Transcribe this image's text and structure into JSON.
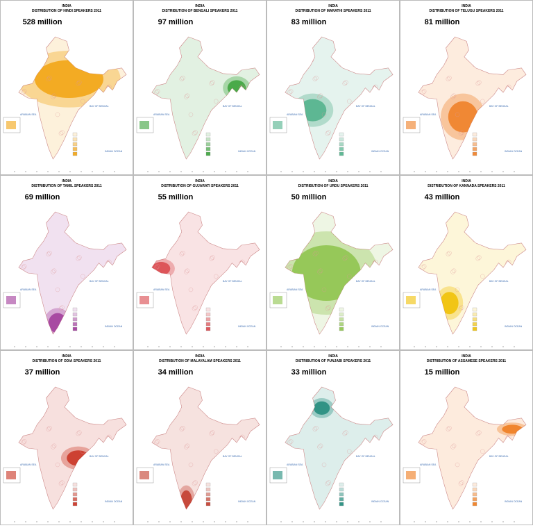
{
  "maps": [
    {
      "country": "INDIA",
      "title": "DISTRIBUTION OF HINDI SPEAKERS 2011",
      "speakers": "528 million",
      "color": "#f2a30f"
    },
    {
      "country": "INDIA",
      "title": "DISTRIBUTION OF BENGALI SPEAKERS 2011",
      "speakers": "97 million",
      "color": "#3aa23a"
    },
    {
      "country": "INDIA",
      "title": "DISTRIBUTION OF MARATHI SPEAKERS 2011",
      "speakers": "83 million",
      "color": "#4fb08a"
    },
    {
      "country": "INDIA",
      "title": "DISTRIBUTION OF TELUGU SPEAKERS 2011",
      "speakers": "81 million",
      "color": "#ef7d22"
    },
    {
      "country": "INDIA",
      "title": "DISTRIBUTION OF TAMIL SPEAKERS 2011",
      "speakers": "69 million",
      "color": "#a0399a"
    },
    {
      "country": "INDIA",
      "title": "DISTRIBUTION OF GUJARATI SPEAKERS 2011",
      "speakers": "55 million",
      "color": "#d9454a"
    },
    {
      "country": "INDIA",
      "title": "DISTRIBUTION OF URDU SPEAKERS 2011",
      "speakers": "50 million",
      "color": "#8cc34a"
    },
    {
      "country": "INDIA",
      "title": "DISTRIBUTION OF KANNADA SPEAKERS 2011",
      "speakers": "43 million",
      "color": "#f0c000"
    },
    {
      "country": "INDIA",
      "title": "DISTRIBUTION OF ODIA SPEAKERS 2011",
      "speakers": "37 million",
      "color": "#c83020"
    },
    {
      "country": "INDIA",
      "title": "DISTRIBUTION OF MALAYALAM SPEAKERS 2011",
      "speakers": "34 million",
      "color": "#c23a2a"
    },
    {
      "country": "INDIA",
      "title": "DISTRIBUTION OF PUNJABI SPEAKERS 2011",
      "speakers": "33 million",
      "color": "#1e8a7a"
    },
    {
      "country": "INDIA",
      "title": "DISTRIBUTION OF ASSAMESE SPEAKERS 2011",
      "speakers": "15 million",
      "color": "#ef7a1a"
    }
  ],
  "sea_labels": {
    "arabian_sea": "ARABIAN SEA",
    "bay_of_bengal": "BAY OF BENGAL",
    "indian_ocean": "INDIAN OCEAN"
  }
}
